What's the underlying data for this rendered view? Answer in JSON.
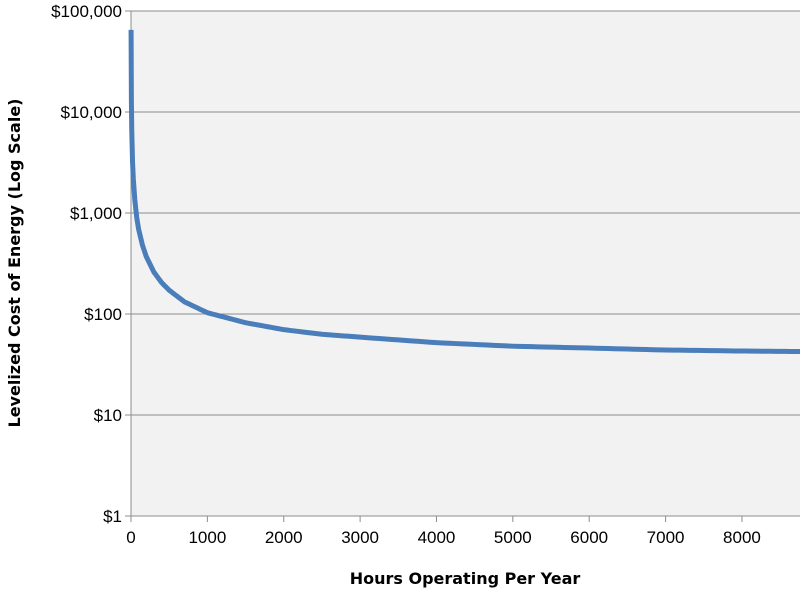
{
  "chart_data": {
    "type": "line",
    "title": "",
    "xlabel": "Hours Operating Per Year",
    "ylabel": "Levelized Cost of Energy (Log Scale)",
    "x_ticks": [
      0,
      1000,
      2000,
      3000,
      4000,
      5000,
      6000,
      7000,
      8000
    ],
    "xlim": [
      0,
      8760
    ],
    "y_scale": "log",
    "ylim": [
      1,
      100000
    ],
    "y_ticks": [
      {
        "value": 1,
        "label": "$1"
      },
      {
        "value": 10,
        "label": "$10"
      },
      {
        "value": 100,
        "label": "$100"
      },
      {
        "value": 1000,
        "label": "$1,000"
      },
      {
        "value": 10000,
        "label": "$10,000"
      },
      {
        "value": 100000,
        "label": "$100,000"
      }
    ],
    "grid": true,
    "legend": "none",
    "series_color": "#4a7ebb",
    "plot_background": "#f2f2f2",
    "x": [
      1,
      5,
      10,
      20,
      30,
      50,
      75,
      100,
      150,
      200,
      300,
      400,
      500,
      700,
      1000,
      1500,
      2000,
      2500,
      3000,
      4000,
      5000,
      6000,
      7000,
      8000,
      8760
    ],
    "y": [
      65000,
      13000,
      6500,
      3200,
      2200,
      1350,
      900,
      690,
      480,
      370,
      260,
      205,
      172,
      132,
      103,
      82,
      70,
      63,
      59,
      52,
      48,
      46,
      44,
      43,
      42.5
    ]
  }
}
